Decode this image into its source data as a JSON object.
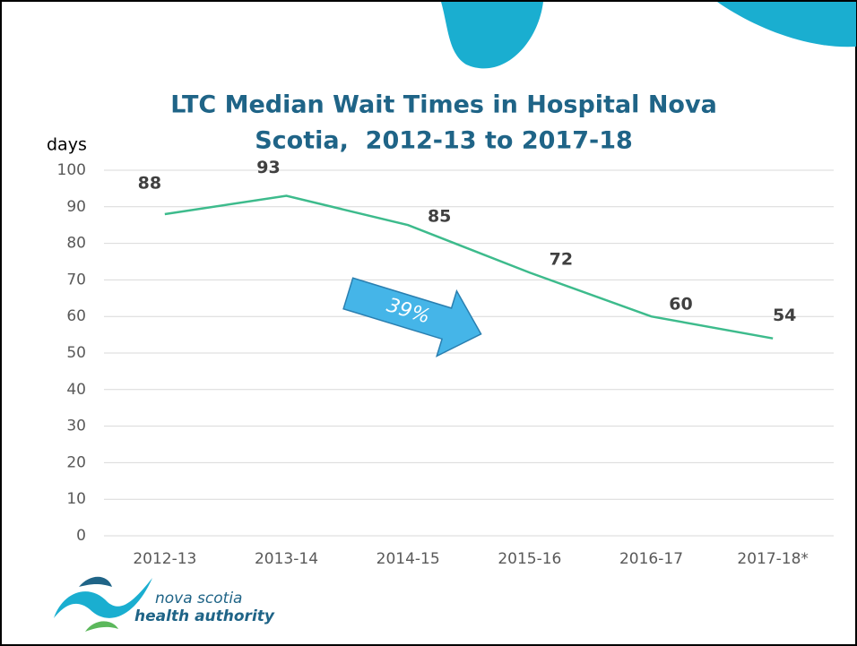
{
  "chart_data": {
    "type": "line",
    "title": [
      "LTC Median Wait Times in Hospital Nova",
      "Scotia,  2012-13 to 2017-18"
    ],
    "y_label": "days",
    "categories": [
      "2012-13",
      "2013-14",
      "2014-15",
      "2015-16",
      "2016-17",
      "2017-18*"
    ],
    "values": [
      88,
      93,
      85,
      72,
      60,
      54
    ],
    "color": "#3dbb8c",
    "ylim": [
      0,
      100
    ],
    "yticks": [
      0,
      10,
      20,
      30,
      40,
      50,
      60,
      70,
      80,
      90,
      100
    ],
    "grid": true,
    "annotation": "39%"
  },
  "logo": {
    "line1": "nova scotia",
    "line2": "health authority"
  }
}
